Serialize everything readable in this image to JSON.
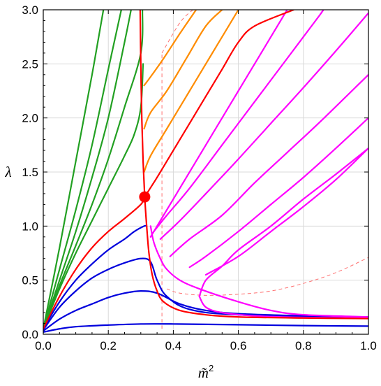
{
  "chart_data": {
    "type": "line",
    "title": "",
    "xlabel": "m̃",
    "xlabel_superscript": "2",
    "ylabel": "λ",
    "xlim": [
      0.0,
      1.0
    ],
    "ylim": [
      0.0,
      3.0
    ],
    "xticks": [
      "0.0",
      "0.2",
      "0.4",
      "0.6",
      "0.8",
      "1.0"
    ],
    "yticks": [
      "0.0",
      "0.5",
      "1.0",
      "1.5",
      "2.0",
      "2.5",
      "3.0"
    ],
    "grid": true,
    "colors": {
      "green": "#22a022",
      "orange": "#ff8c00",
      "red": "#ff0000",
      "blue": "#0000dd",
      "magenta": "#ff00ff",
      "grid": "#d9d9d9",
      "dashed": "#ff7070"
    },
    "marker": {
      "x": 0.312,
      "y": 1.27,
      "color": "#ff0000"
    },
    "series": [
      {
        "color": "green",
        "points": [
          [
            0,
            0.05
          ],
          [
            0.05,
            0.8
          ],
          [
            0.1,
            1.6
          ],
          [
            0.15,
            2.4
          ],
          [
            0.185,
            3.0
          ]
        ]
      },
      {
        "color": "green",
        "points": [
          [
            0,
            0.05
          ],
          [
            0.05,
            0.6
          ],
          [
            0.1,
            1.15
          ],
          [
            0.15,
            1.75
          ],
          [
            0.2,
            2.45
          ],
          [
            0.24,
            3.0
          ]
        ]
      },
      {
        "color": "green",
        "points": [
          [
            0,
            0.05
          ],
          [
            0.05,
            0.5
          ],
          [
            0.1,
            0.95
          ],
          [
            0.15,
            1.45
          ],
          [
            0.2,
            2.0
          ],
          [
            0.25,
            2.7
          ],
          [
            0.27,
            3.0
          ]
        ]
      },
      {
        "color": "green",
        "points": [
          [
            0,
            0.05
          ],
          [
            0.05,
            0.45
          ],
          [
            0.1,
            0.82
          ],
          [
            0.15,
            1.2
          ],
          [
            0.2,
            1.62
          ],
          [
            0.25,
            2.1
          ],
          [
            0.3,
            2.6
          ],
          [
            0.305,
            3.0
          ]
        ]
      },
      {
        "color": "green",
        "points": [
          [
            0,
            0.05
          ],
          [
            0.05,
            0.42
          ],
          [
            0.1,
            0.75
          ],
          [
            0.15,
            1.05
          ],
          [
            0.2,
            1.35
          ],
          [
            0.25,
            1.65
          ],
          [
            0.28,
            1.85
          ],
          [
            0.3,
            2.1
          ],
          [
            0.307,
            2.5
          ]
        ]
      },
      {
        "color": "orange",
        "points": [
          [
            0.31,
            1.5
          ],
          [
            0.33,
            1.65
          ],
          [
            0.38,
            1.9
          ],
          [
            0.45,
            2.25
          ],
          [
            0.52,
            2.6
          ],
          [
            0.55,
            2.75
          ],
          [
            0.6,
            3.0
          ]
        ]
      },
      {
        "color": "orange",
        "points": [
          [
            0.31,
            1.9
          ],
          [
            0.33,
            2.05
          ],
          [
            0.38,
            2.25
          ],
          [
            0.44,
            2.55
          ],
          [
            0.5,
            2.85
          ],
          [
            0.55,
            3.0
          ]
        ]
      },
      {
        "color": "orange",
        "points": [
          [
            0.31,
            2.3
          ],
          [
            0.33,
            2.38
          ],
          [
            0.37,
            2.55
          ],
          [
            0.42,
            2.78
          ],
          [
            0.47,
            3.0
          ]
        ]
      },
      {
        "color": "red",
        "points": [
          [
            0,
            0.05
          ],
          [
            0.05,
            0.35
          ],
          [
            0.1,
            0.6
          ],
          [
            0.15,
            0.8
          ],
          [
            0.2,
            0.95
          ],
          [
            0.25,
            1.07
          ],
          [
            0.3,
            1.2
          ],
          [
            0.312,
            1.27
          ],
          [
            0.35,
            1.45
          ],
          [
            0.4,
            1.7
          ],
          [
            0.45,
            1.95
          ],
          [
            0.5,
            2.2
          ],
          [
            0.55,
            2.45
          ],
          [
            0.6,
            2.7
          ],
          [
            0.65,
            2.85
          ],
          [
            0.77,
            3.0
          ]
        ]
      },
      {
        "color": "red",
        "points": [
          [
            0.298,
            3.0
          ],
          [
            0.3,
            2.5
          ],
          [
            0.303,
            2.0
          ],
          [
            0.307,
            1.6
          ],
          [
            0.312,
            1.27
          ],
          [
            0.318,
            1.0
          ],
          [
            0.325,
            0.75
          ],
          [
            0.335,
            0.55
          ],
          [
            0.35,
            0.4
          ],
          [
            0.37,
            0.3
          ],
          [
            0.42,
            0.22
          ],
          [
            0.5,
            0.18
          ],
          [
            0.6,
            0.16
          ],
          [
            0.8,
            0.15
          ],
          [
            1.0,
            0.145
          ]
        ]
      },
      {
        "color": "blue",
        "points": [
          [
            0,
            0.05
          ],
          [
            0.05,
            0.3
          ],
          [
            0.1,
            0.5
          ],
          [
            0.15,
            0.65
          ],
          [
            0.2,
            0.78
          ],
          [
            0.25,
            0.88
          ],
          [
            0.28,
            0.95
          ],
          [
            0.31,
            1.0
          ],
          [
            0.318,
            1.0
          ]
        ]
      },
      {
        "color": "blue",
        "points": [
          [
            0,
            0.04
          ],
          [
            0.05,
            0.25
          ],
          [
            0.1,
            0.4
          ],
          [
            0.15,
            0.52
          ],
          [
            0.2,
            0.6
          ],
          [
            0.25,
            0.66
          ],
          [
            0.3,
            0.7
          ],
          [
            0.33,
            0.67
          ],
          [
            0.35,
            0.5
          ],
          [
            0.38,
            0.35
          ],
          [
            0.45,
            0.23
          ],
          [
            0.6,
            0.18
          ],
          [
            1.0,
            0.15
          ]
        ]
      },
      {
        "color": "blue",
        "points": [
          [
            0,
            0.03
          ],
          [
            0.05,
            0.14
          ],
          [
            0.1,
            0.22
          ],
          [
            0.15,
            0.28
          ],
          [
            0.2,
            0.34
          ],
          [
            0.25,
            0.38
          ],
          [
            0.3,
            0.4
          ],
          [
            0.35,
            0.38
          ],
          [
            0.42,
            0.28
          ],
          [
            0.5,
            0.22
          ],
          [
            0.6,
            0.19
          ],
          [
            0.8,
            0.17
          ],
          [
            1.0,
            0.16
          ]
        ]
      },
      {
        "color": "blue",
        "points": [
          [
            0,
            0.02
          ],
          [
            0.05,
            0.05
          ],
          [
            0.1,
            0.07
          ],
          [
            0.2,
            0.085
          ],
          [
            0.3,
            0.095
          ],
          [
            0.4,
            0.095
          ],
          [
            0.6,
            0.088
          ],
          [
            0.8,
            0.08
          ],
          [
            1.0,
            0.075
          ]
        ]
      },
      {
        "color": "magenta",
        "points": [
          [
            0.33,
            1.0
          ],
          [
            0.34,
            0.85
          ],
          [
            0.36,
            0.7
          ],
          [
            0.38,
            0.6
          ],
          [
            0.42,
            0.5
          ],
          [
            0.48,
            0.42
          ],
          [
            0.6,
            0.3
          ],
          [
            0.7,
            0.22
          ],
          [
            0.8,
            0.18
          ],
          [
            1.0,
            0.16
          ]
        ]
      },
      {
        "color": "magenta",
        "points": [
          [
            0.33,
            0.9
          ],
          [
            0.36,
            1.05
          ],
          [
            0.42,
            1.35
          ],
          [
            0.5,
            1.75
          ],
          [
            0.6,
            2.25
          ],
          [
            0.7,
            2.75
          ],
          [
            0.75,
            3.0
          ]
        ]
      },
      {
        "color": "magenta",
        "points": [
          [
            0.34,
            0.95
          ],
          [
            0.38,
            1.1
          ],
          [
            0.45,
            1.35
          ],
          [
            0.55,
            1.75
          ],
          [
            0.65,
            2.15
          ],
          [
            0.75,
            2.55
          ],
          [
            0.85,
            2.95
          ],
          [
            0.86,
            3.0
          ]
        ]
      },
      {
        "color": "magenta",
        "points": [
          [
            0.36,
            0.88
          ],
          [
            0.42,
            1.05
          ],
          [
            0.5,
            1.3
          ],
          [
            0.6,
            1.62
          ],
          [
            0.7,
            1.95
          ],
          [
            0.8,
            2.28
          ],
          [
            0.9,
            2.62
          ],
          [
            1.0,
            2.97
          ]
        ]
      },
      {
        "color": "magenta",
        "points": [
          [
            0.39,
            0.72
          ],
          [
            0.45,
            0.88
          ],
          [
            0.55,
            1.1
          ],
          [
            0.65,
            1.4
          ],
          [
            0.75,
            1.68
          ],
          [
            0.85,
            1.96
          ],
          [
            1.0,
            2.4
          ]
        ]
      },
      {
        "color": "magenta",
        "points": [
          [
            0.45,
            0.62
          ],
          [
            0.5,
            0.72
          ],
          [
            0.6,
            0.95
          ],
          [
            0.7,
            1.2
          ],
          [
            0.8,
            1.45
          ],
          [
            0.9,
            1.72
          ],
          [
            1.0,
            2.0
          ]
        ]
      },
      {
        "color": "magenta",
        "points": [
          [
            0.5,
            0.55
          ],
          [
            0.6,
            0.72
          ],
          [
            0.7,
            0.95
          ],
          [
            0.8,
            1.18
          ],
          [
            0.9,
            1.43
          ],
          [
            1.0,
            1.72
          ]
        ]
      },
      {
        "color": "magenta",
        "points": [
          [
            0.48,
            0.35
          ],
          [
            0.5,
            0.5
          ],
          [
            0.55,
            0.63
          ],
          [
            0.6,
            0.78
          ],
          [
            0.7,
            1.0
          ],
          [
            0.8,
            1.25
          ],
          [
            0.9,
            1.48
          ],
          [
            1.0,
            1.72
          ]
        ]
      },
      {
        "color": "magenta",
        "points": [
          [
            0.48,
            0.35
          ],
          [
            0.5,
            0.25
          ],
          [
            0.55,
            0.2
          ],
          [
            0.65,
            0.17
          ],
          [
            0.8,
            0.155
          ],
          [
            1.0,
            0.15
          ]
        ]
      }
    ],
    "dashed": [
      {
        "color": "dashed",
        "points": [
          [
            0.365,
            0.05
          ],
          [
            0.365,
            2.6
          ]
        ]
      },
      {
        "color": "dashed",
        "points": [
          [
            0.38,
            0.42
          ],
          [
            0.42,
            0.38
          ],
          [
            0.5,
            0.36
          ],
          [
            0.6,
            0.37
          ],
          [
            0.7,
            0.4
          ],
          [
            0.8,
            0.47
          ],
          [
            0.9,
            0.57
          ],
          [
            1.0,
            0.71
          ]
        ]
      },
      {
        "color": "dashed",
        "points": [
          [
            0.365,
            2.6
          ],
          [
            0.42,
            2.88
          ],
          [
            0.46,
            3.0
          ]
        ]
      }
    ]
  }
}
